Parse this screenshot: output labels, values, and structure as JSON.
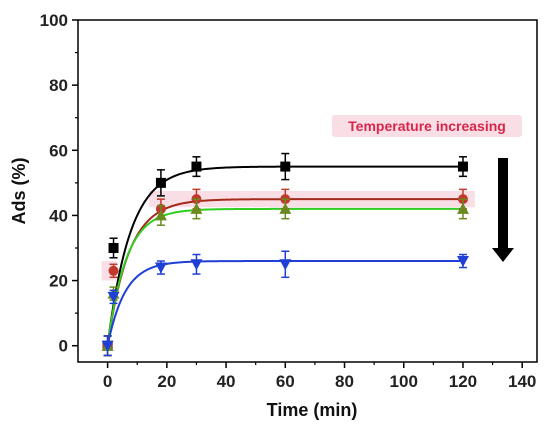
{
  "chart_data": {
    "type": "scatter",
    "xlabel": "Time (min)",
    "ylabel": "Ads (%)",
    "xlim": [
      -10,
      145
    ],
    "ylim": [
      -5,
      100
    ],
    "x_ticks": [
      0,
      20,
      40,
      60,
      80,
      100,
      120,
      140
    ],
    "y_ticks": [
      0,
      20,
      40,
      60,
      80,
      100
    ],
    "grid": false,
    "annotation": {
      "text": "Temperature increasing",
      "color": "#d9264a",
      "highlight_color": "#f7d6e0",
      "arrow_direction": "down"
    },
    "x": [
      0,
      2,
      18,
      30,
      60,
      120
    ],
    "series": [
      {
        "color": "#000000",
        "marker": "square",
        "y": [
          0,
          30,
          50,
          55,
          55,
          55
        ],
        "err": [
          3,
          3,
          4,
          3,
          4,
          3
        ],
        "fit_plateau": 55,
        "fit_rate": 0.13
      },
      {
        "color": "#c0392b",
        "marker": "circle",
        "y": [
          0,
          23,
          42,
          45,
          45,
          45
        ],
        "err": [
          3,
          2,
          3,
          3,
          3,
          3
        ],
        "fit_plateau": 45,
        "fit_rate": 0.14
      },
      {
        "color": "#6a8a1f",
        "marker": "triangle-up",
        "y": [
          0,
          16,
          40,
          42,
          42,
          42
        ],
        "err": [
          3,
          2,
          3,
          3,
          3,
          3
        ],
        "fit_plateau": 42,
        "fit_rate": 0.16
      },
      {
        "color": "#1f3fd6",
        "marker": "triangle-down",
        "y": [
          0,
          15,
          24,
          25,
          25,
          26
        ],
        "err": [
          3,
          2,
          2,
          3,
          4,
          2
        ],
        "fit_plateau": 26,
        "fit_rate": 0.17
      }
    ],
    "fit_line_colors": [
      "#000000",
      "#a52a1a",
      "#33cc22",
      "#1f3fd6"
    ]
  }
}
